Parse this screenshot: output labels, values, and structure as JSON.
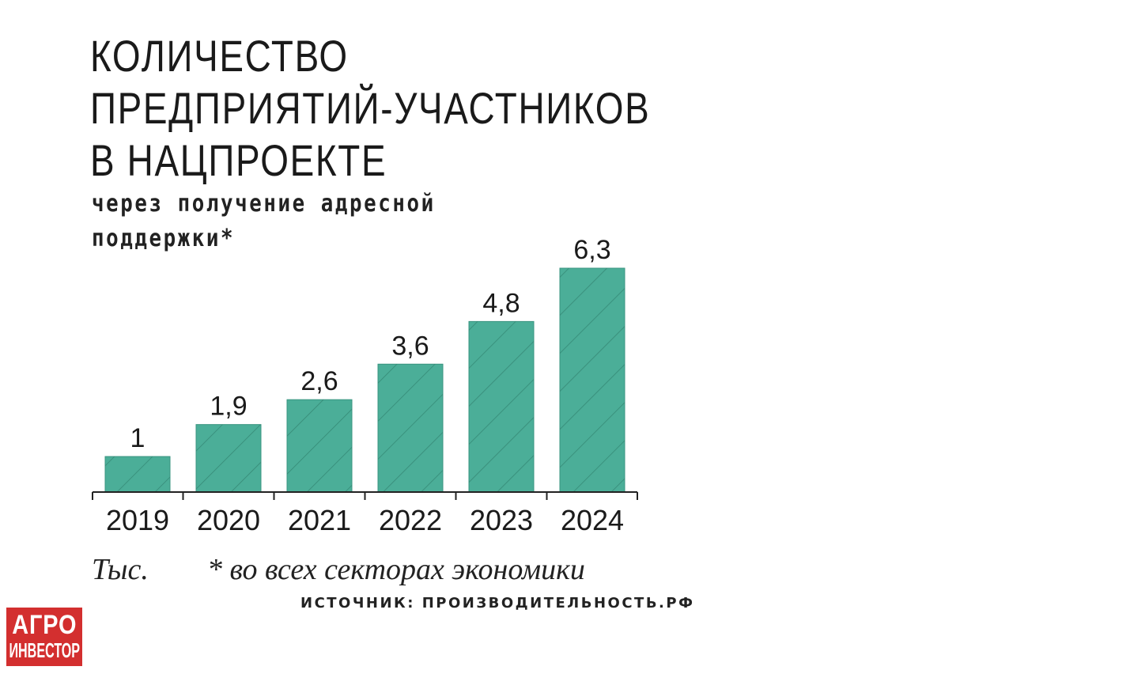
{
  "title_lines": [
    "КОЛИЧЕСТВО",
    "ПРЕДПРИЯТИЙ-УЧАСТНИКОВ",
    "В НАЦПРОЕКТЕ"
  ],
  "subtitle_lines": [
    "через получение адресной",
    "поддержки*"
  ],
  "unit": "Тыс.",
  "footnote": "* во всех секторах экономики",
  "source": "ИСТОЧНИК: ПРОИЗВОДИТЕЛЬНОСТЬ.РФ",
  "logo": {
    "line1": "АГРО",
    "line2": "ИНВЕСТОР"
  },
  "colors": {
    "bar": "#4bae98",
    "bar_stroke": "#3a9480",
    "hatch": "#2f7d6b",
    "axis": "#222222",
    "logo": "#d32f2f"
  },
  "chart_data": {
    "type": "bar",
    "categories": [
      "2019",
      "2020",
      "2021",
      "2022",
      "2023",
      "2024"
    ],
    "values": [
      1,
      1.9,
      2.6,
      3.6,
      4.8,
      6.3
    ],
    "value_labels": [
      "1",
      "1,9",
      "2,6",
      "3,6",
      "4,8",
      "6,3"
    ],
    "ylim": [
      0,
      6.3
    ],
    "grid": false,
    "legend": "none"
  }
}
